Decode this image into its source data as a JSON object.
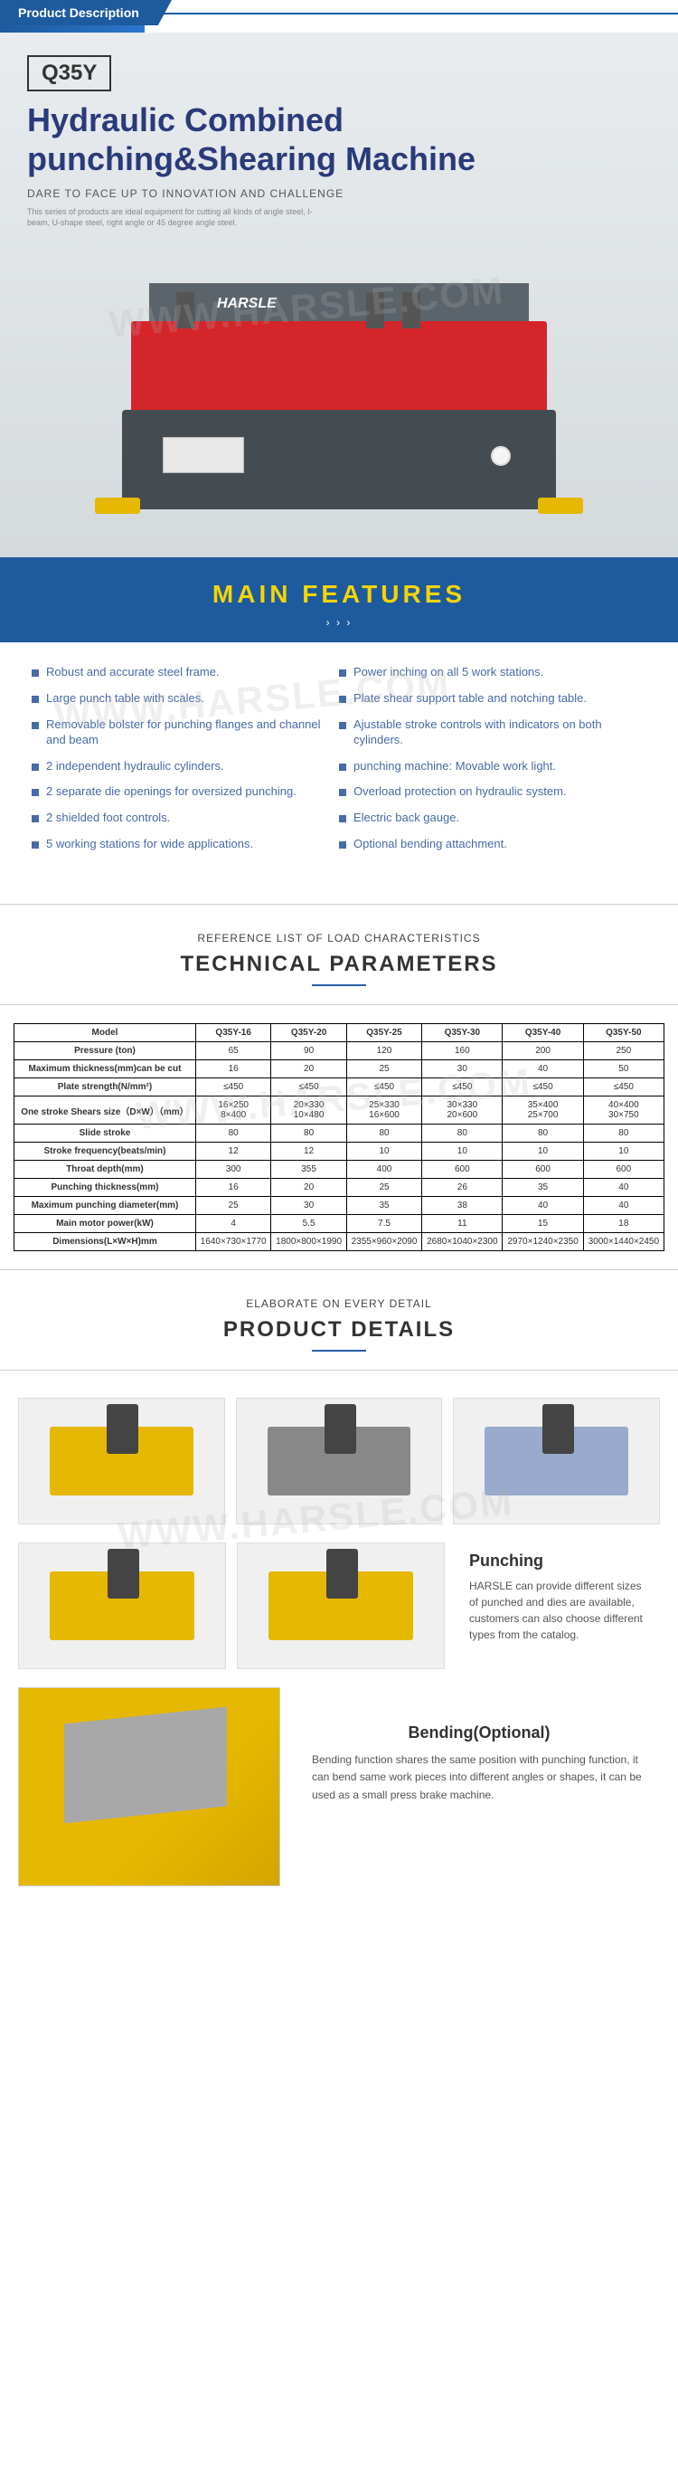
{
  "header": {
    "label": "Product Description"
  },
  "hero": {
    "model": "Q35Y",
    "title_l1": "Hydraulic Combined",
    "title_l2": "punching&Shearing Machine",
    "tagline": "DARE TO FACE UP TO INNOVATION AND CHALLENGE",
    "smalltext": "This series of products are ideal equipment for cutting all kinds of angle steel, I-beam, U-shape steel, right angle or 45 degree angle steel.",
    "brand": "HARSLE"
  },
  "main_features": {
    "title": "MAIN FEATURES",
    "arrows": "› › ›",
    "left": [
      "Robust and accurate steel frame.",
      "Large punch table with scales.",
      "Removable bolster for punching flanges and channel and beam",
      "2 independent hydraulic cylinders.",
      "2 separate die openings for oversized punching.",
      "2 shielded foot controls.",
      "5 working stations for wide applications."
    ],
    "right": [
      "Power inching on all 5 work stations.",
      "Plate shear support table and notching table.",
      "Ajustable stroke controls with indicators on both cylinders.",
      "punching machine: Movable work light.",
      "Overload protection on hydraulic system.",
      "Electric back gauge.",
      "Optional bending attachment."
    ]
  },
  "tech": {
    "sub": "REFERENCE LIST OF LOAD CHARACTERISTICS",
    "title": "TECHNICAL PARAMETERS",
    "cols": [
      "Model",
      "Q35Y-16",
      "Q35Y-20",
      "Q35Y-25",
      "Q35Y-30",
      "Q35Y-40",
      "Q35Y-50"
    ],
    "rows": [
      [
        "Pressure (ton)",
        "65",
        "90",
        "120",
        "160",
        "200",
        "250"
      ],
      [
        "Maximum thickness(mm)can be cut",
        "16",
        "20",
        "25",
        "30",
        "40",
        "50"
      ],
      [
        "Plate strength(N/mm²)",
        "≤450",
        "≤450",
        "≤450",
        "≤450",
        "≤450",
        "≤450"
      ],
      [
        "One stroke Shears size（D×W）（mm）",
        "16×250\n8×400",
        "20×330\n10×480",
        "25×330\n16×600",
        "30×330\n20×600",
        "35×400\n25×700",
        "40×400\n30×750"
      ],
      [
        "Slide stroke",
        "80",
        "80",
        "80",
        "80",
        "80",
        "80"
      ],
      [
        "Stroke frequency(beats/min)",
        "12",
        "12",
        "10",
        "10",
        "10",
        "10"
      ],
      [
        "Throat depth(mm)",
        "300",
        "355",
        "400",
        "600",
        "600",
        "600"
      ],
      [
        "Punching thickness(mm)",
        "16",
        "20",
        "25",
        "26",
        "35",
        "40"
      ],
      [
        "Maximum punching diameter(mm)",
        "25",
        "30",
        "35",
        "38",
        "40",
        "40"
      ],
      [
        "Main motor power(kW)",
        "4",
        "5.5",
        "7.5",
        "11",
        "15",
        "18"
      ],
      [
        "Dimensions(L×W×H)mm",
        "1640×730×1770",
        "1800×800×1990",
        "2355×960×2090",
        "2680×1040×2300",
        "2970×1240×2350",
        "3000×1440×2450"
      ]
    ]
  },
  "details": {
    "sub": "ELABORATE ON EVERY DETAIL",
    "title": "PRODUCT DETAILS",
    "punching": {
      "heading": "Punching",
      "text": "HARSLE can provide different sizes of punched and dies are available, customers can also choose different types from the catalog."
    },
    "bending": {
      "heading": "Bending(Optional)",
      "text": "Bending function shares the same position with punching function, it can bend same work pieces into different angles or shapes, it can be used as a small press brake machine."
    }
  },
  "watermark": "WWW.HARSLE.COM"
}
